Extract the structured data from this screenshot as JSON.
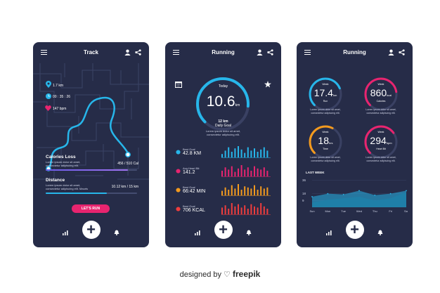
{
  "track": {
    "title": "Track",
    "stats": [
      {
        "icon": "location-pin-icon",
        "value": "1.7 km",
        "color": "#27b6ea"
      },
      {
        "icon": "clock-icon",
        "value": "00 : 35 : 26",
        "color": "#27b6ea"
      },
      {
        "icon": "heart-icon",
        "value": "147 bpm",
        "color": "#e8246f"
      }
    ],
    "calories": {
      "label": "Calories Loss",
      "desc1": "Lorem ipsum dolor sit amet,",
      "desc2": "consectetur adipiscing elit.",
      "value": "456 / 510 Cal",
      "progress": 0.9
    },
    "distance": {
      "label": "Distance",
      "desc1": "Lorem ipsum dolor sit amet,",
      "desc2": "consectetur adipiscing elit. Mauris",
      "value": "10.12 km / 15 km",
      "progress": 0.67
    },
    "button": "LET'S RUN"
  },
  "running": {
    "title": "Running",
    "gauge": {
      "label": "Today",
      "value": "10.6",
      "unit": "km",
      "goal_value": "12 km",
      "goal_label": "Daily Goal",
      "desc1": "Lorem ipsum dolor sit amet,",
      "desc2": "consectetur adipiscing elit.",
      "progress": 0.85
    },
    "metrics": [
      {
        "icon": "trophy-icon",
        "label": "Best Goal",
        "value": "42.8 KM",
        "color": "#27b6ea",
        "bars": [
          0.3,
          0.6,
          0.9,
          0.5,
          0.8,
          1,
          0.7,
          0.4,
          0.9,
          0.6,
          0.8,
          0.5,
          0.7,
          0.9,
          0.6
        ]
      },
      {
        "icon": "heart-icon",
        "label": "Avg Heart Bit",
        "value": "141.2",
        "color": "#e8246f",
        "bars": [
          0.5,
          0.8,
          0.6,
          0.9,
          0.4,
          0.7,
          1,
          0.6,
          0.8,
          0.5,
          0.9,
          0.7,
          0.6,
          0.8,
          0.5
        ]
      },
      {
        "icon": "timer-icon",
        "label": "Best Goal",
        "value": "66:42 MIN",
        "color": "#f39a1e",
        "bars": [
          0.4,
          0.7,
          0.5,
          0.9,
          0.6,
          1,
          0.5,
          0.8,
          0.7,
          0.6,
          0.9,
          0.5,
          0.8,
          0.6,
          0.7
        ]
      },
      {
        "icon": "fire-icon",
        "label": "Best Goal",
        "value": "706 KCAL",
        "color": "#ee3d3d",
        "bars": [
          0.6,
          0.8,
          0.5,
          1,
          0.7,
          0.9,
          0.6,
          0.8,
          0.5,
          0.9,
          0.7,
          0.6,
          1,
          0.7,
          0.5
        ]
      }
    ]
  },
  "stats": {
    "title": "Running",
    "gauges": [
      {
        "label": "Week",
        "value": "17.4",
        "unit": "km",
        "name": "Run",
        "color": "#27b6ea",
        "progress": 0.75
      },
      {
        "label": "Week",
        "value": "860",
        "unit": "kcal",
        "name": "Calories",
        "color": "#e8246f",
        "progress": 0.8
      },
      {
        "label": "Week",
        "value": "18",
        "unit": "hrs",
        "name": "Time",
        "color": "#f39a1e",
        "progress": 0.6
      },
      {
        "label": "Week",
        "value": "294",
        "unit": "bpm",
        "name": "Heart Bit",
        "color": "#e8246f",
        "progress": 0.7
      }
    ],
    "gauge_desc1": "Lorem ipsum dolor sit amet,",
    "gauge_desc2": "consectetur adipiscing elit.",
    "chart_title": "LAST WEEK",
    "chart_data": {
      "type": "area",
      "x": [
        "Sun",
        "Mon",
        "Tue",
        "Wed",
        "Thu",
        "Fri",
        "Sat"
      ],
      "series": [
        {
          "values": [
            14,
            18,
            17,
            22,
            16,
            18,
            22
          ]
        },
        {
          "values": [
            6,
            10,
            12,
            14,
            9,
            12,
            20
          ]
        }
      ],
      "yticks": [
        "36",
        "18",
        "9"
      ],
      "ylim": [
        0,
        40
      ]
    }
  },
  "brand": {
    "prefix": "designed by",
    "name": "freepik"
  }
}
